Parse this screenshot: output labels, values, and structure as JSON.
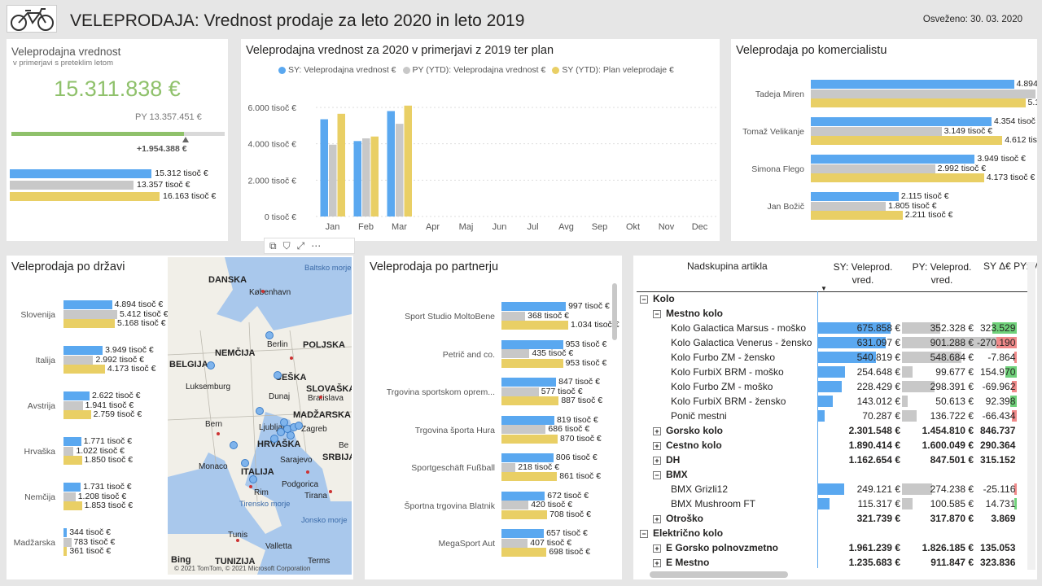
{
  "header": {
    "title": "VELEPRODAJA: Vrednost prodaje za leto 2020 in leto 2019",
    "refreshed": "Osveženo: 30. 03. 2020",
    "logo_icon": "bicycle-icon"
  },
  "kpi": {
    "title": "Veleprodajna vrednost",
    "subtitle": "v primerjavi s preteklim letom",
    "value": "15.311.838 €",
    "py_label": "PY 13.357.451 €",
    "delta": "+1.954.388 €",
    "progress_fraction": 0.81,
    "bars": [
      {
        "label": "15.312 tisoč €",
        "value": 15312,
        "color": "#5aa8f0"
      },
      {
        "label": "13.357 tisoč €",
        "value": 13357,
        "color": "#c8c8c8"
      },
      {
        "label": "16.163 tisoč €",
        "value": 16163,
        "color": "#e9cf65"
      }
    ]
  },
  "monthly": {
    "title": "Veleprodajna vrednost za 2020 v primerjavi z 2019 ter plan",
    "legend": [
      "SY: Veleprodajna vrednost €",
      "PY (YTD): Veleprodajna vrednost €",
      "SY (YTD): Plan veleprodaje €"
    ],
    "yticks": [
      "6.000 tisoč €",
      "4.000 tisoč €",
      "2.000 tisoč €",
      "0 tisoč €"
    ]
  },
  "chart_data": {
    "type": "bar",
    "categories": [
      "Jan",
      "Feb",
      "Mar",
      "Apr",
      "Maj",
      "Jun",
      "Jul",
      "Avg",
      "Sep",
      "Okt",
      "Nov",
      "Dec"
    ],
    "series": [
      {
        "name": "SY: Veleprodajna vrednost €",
        "values": [
          5350,
          4150,
          5800,
          null,
          null,
          null,
          null,
          null,
          null,
          null,
          null,
          null
        ],
        "color": "#5aa8f0"
      },
      {
        "name": "PY (YTD): Veleprodajna vrednost €",
        "values": [
          3950,
          4300,
          5100,
          null,
          null,
          null,
          null,
          null,
          null,
          null,
          null,
          null
        ],
        "color": "#c8c8c8"
      },
      {
        "name": "SY (YTD): Plan veleprodaje €",
        "values": [
          5650,
          4400,
          6100,
          null,
          null,
          null,
          null,
          null,
          null,
          null,
          null,
          null
        ],
        "color": "#e9cf65"
      }
    ],
    "ylim": [
      0,
      7000
    ],
    "grid": true,
    "legend_position": "top"
  },
  "komercialist": {
    "title": "Veleprodaja po komercialistu",
    "rows": [
      {
        "name": "Tadeja Miren",
        "vals": [
          4894,
          5412,
          5168
        ],
        "labels": [
          "4.894 tisoč €",
          "5.412 tisoč €",
          "5.168 tisoč €"
        ]
      },
      {
        "name": "Tomaž Velikanje",
        "vals": [
          4354,
          3149,
          4612
        ],
        "labels": [
          "4.354 tisoč €",
          "3.149 tisoč €",
          "4.612 tisoč €"
        ]
      },
      {
        "name": "Simona Flego",
        "vals": [
          3949,
          2992,
          4173
        ],
        "labels": [
          "3.949 tisoč €",
          "2.992 tisoč €",
          "4.173 tisoč €"
        ]
      },
      {
        "name": "Jan Božič",
        "vals": [
          2115,
          1805,
          2211
        ],
        "labels": [
          "2.115 tisoč €",
          "1.805 tisoč €",
          "2.211 tisoč €"
        ]
      }
    ]
  },
  "drzava": {
    "title": "Veleprodaja po državi",
    "rows": [
      {
        "name": "Slovenija",
        "vals": [
          4894,
          5412,
          5168
        ],
        "labels": [
          "4.894 tisoč €",
          "5.412 tisoč €",
          "5.168 tisoč €"
        ]
      },
      {
        "name": "Italija",
        "vals": [
          3949,
          2992,
          4173
        ],
        "labels": [
          "3.949 tisoč €",
          "2.992 tisoč €",
          "4.173 tisoč €"
        ]
      },
      {
        "name": "Avstrija",
        "vals": [
          2622,
          1941,
          2759
        ],
        "labels": [
          "2.622 tisoč €",
          "1.941 tisoč €",
          "2.759 tisoč €"
        ]
      },
      {
        "name": "Hrvaška",
        "vals": [
          1771,
          1022,
          1850
        ],
        "labels": [
          "1.771 tisoč €",
          "1.022 tisoč €",
          "1.850 tisoč €"
        ]
      },
      {
        "name": "Nemčija",
        "vals": [
          1731,
          1208,
          1853
        ],
        "labels": [
          "1.731 tisoč €",
          "1.208 tisoč €",
          "1.853 tisoč €"
        ]
      },
      {
        "name": "Madžarska",
        "vals": [
          344,
          783,
          361
        ],
        "labels": [
          "344 tisoč €",
          "783 tisoč €",
          "361 tisoč €"
        ]
      }
    ]
  },
  "map": {
    "labels": [
      "DANSKA",
      "København",
      "Baltsko morje",
      "Berlin",
      "POLJSKA",
      "NEMČIJA",
      "BELGIJA",
      "Luksemburg",
      "ČEŠKA",
      "SLOVAŠKA",
      "Dunaj",
      "Bratislava",
      "MADŽARSKA",
      "Bern",
      "Ljubljana",
      "Zagreb",
      "HRVAŠKA",
      "SRBIJA",
      "Be",
      "Monaco",
      "ITALIJA",
      "Sarajevo",
      "Podgorica",
      "Rim",
      "Tirana",
      "Tirensko morje",
      "Jonsko morje",
      "Tunis",
      "Valletta",
      "TUNIZIJA",
      "Bing",
      "Terms",
      "© 2021 TomTom, © 2021 Microsoft Corporation"
    ]
  },
  "partner": {
    "title": "Veleprodaja po partnerju",
    "rows": [
      {
        "name": "Sport Studio MoltoBene",
        "vals": [
          997,
          368,
          1034
        ],
        "labels": [
          "997 tisoč €",
          "368 tisoč €",
          "1.034 tisoč €"
        ]
      },
      {
        "name": "Petrič and co.",
        "vals": [
          953,
          435,
          953
        ],
        "labels": [
          "953 tisoč €",
          "435 tisoč €",
          "953 tisoč €"
        ]
      },
      {
        "name": "Trgovina sportskom oprem...",
        "vals": [
          847,
          577,
          887
        ],
        "labels": [
          "847 tisoč €",
          "577 tisoč €",
          "887 tisoč €"
        ]
      },
      {
        "name": "Trgovina športa Hura",
        "vals": [
          819,
          686,
          870
        ],
        "labels": [
          "819 tisoč €",
          "686 tisoč €",
          "870 tisoč €"
        ]
      },
      {
        "name": "Sportgeschäft Fußball",
        "vals": [
          806,
          218,
          861
        ],
        "labels": [
          "806 tisoč €",
          "218 tisoč €",
          "861 tisoč €"
        ]
      },
      {
        "name": "Športna trgovina Blatnik",
        "vals": [
          672,
          420,
          708
        ],
        "labels": [
          "672 tisoč €",
          "420 tisoč €",
          "708 tisoč €"
        ]
      },
      {
        "name": "MegaSport Aut",
        "vals": [
          657,
          407,
          698
        ],
        "labels": [
          "657 tisoč €",
          "407 tisoč €",
          "698 tisoč €"
        ]
      }
    ]
  },
  "matrix": {
    "headers": [
      "Nadskupina artikla",
      "SY: Veleprod. vred.",
      "PY: Veleprod. vred.",
      "SY Δ€ PY: V"
    ],
    "rows": [
      {
        "label": "Kolo",
        "level": 0,
        "exp": "⊟",
        "bold": true,
        "sy": "",
        "py": "",
        "d": ""
      },
      {
        "label": "Mestno kolo",
        "level": 1,
        "exp": "⊟",
        "bold": true,
        "sy": "",
        "py": "",
        "d": ""
      },
      {
        "label": "Kolo Galactica Marsus - moško",
        "level": 2,
        "sy": "675.858 €",
        "py": "352.328 €",
        "d": "323.529",
        "syv": 675858,
        "pyv": 352328,
        "dv": 323529
      },
      {
        "label": "Kolo Galactica Venerus - žensko",
        "level": 2,
        "sy": "631.097 €",
        "py": "901.288 €",
        "d": "-270.190",
        "syv": 631097,
        "pyv": 901288,
        "dv": -270190
      },
      {
        "label": "Kolo Furbo ZM - žensko",
        "level": 2,
        "sy": "540.819 €",
        "py": "548.684 €",
        "d": "-7.864",
        "syv": 540819,
        "pyv": 548684,
        "dv": -7864
      },
      {
        "label": "Kolo FurbiX BRM - moško",
        "level": 2,
        "sy": "254.648 €",
        "py": "99.677 €",
        "d": "154.970",
        "syv": 254648,
        "pyv": 99677,
        "dv": 154970
      },
      {
        "label": "Kolo Furbo ZM - moško",
        "level": 2,
        "sy": "228.429 €",
        "py": "298.391 €",
        "d": "-69.962",
        "syv": 228429,
        "pyv": 298391,
        "dv": -69962
      },
      {
        "label": "Kolo FurbiX BRM - žensko",
        "level": 2,
        "sy": "143.012 €",
        "py": "50.613 €",
        "d": "92.398",
        "syv": 143012,
        "pyv": 50613,
        "dv": 92398
      },
      {
        "label": "Ponič mestni",
        "level": 2,
        "sy": "70.287 €",
        "py": "136.722 €",
        "d": "-66.434",
        "syv": 70287,
        "pyv": 136722,
        "dv": -66434
      },
      {
        "label": "Gorsko kolo",
        "level": 1,
        "exp": "⊞",
        "bold": true,
        "sy": "2.301.548 €",
        "py": "1.454.810 €",
        "d": "846.737"
      },
      {
        "label": "Cestno kolo",
        "level": 1,
        "exp": "⊞",
        "bold": true,
        "sy": "1.890.414 €",
        "py": "1.600.049 €",
        "d": "290.364"
      },
      {
        "label": "DH",
        "level": 1,
        "exp": "⊞",
        "bold": true,
        "sy": "1.162.654 €",
        "py": "847.501 €",
        "d": "315.152"
      },
      {
        "label": "BMX",
        "level": 1,
        "exp": "⊟",
        "bold": true,
        "sy": "",
        "py": "",
        "d": ""
      },
      {
        "label": "BMX Grizli12",
        "level": 2,
        "sy": "249.121 €",
        "py": "274.238 €",
        "d": "-25.116",
        "syv": 249121,
        "pyv": 274238,
        "dv": -25116
      },
      {
        "label": "BMX Mushroom FT",
        "level": 2,
        "sy": "115.317 €",
        "py": "100.585 €",
        "d": "14.731",
        "syv": 115317,
        "pyv": 100585,
        "dv": 14731
      },
      {
        "label": "Otroško",
        "level": 1,
        "exp": "⊞",
        "bold": true,
        "sy": "321.739 €",
        "py": "317.870 €",
        "d": "3.869"
      },
      {
        "label": "Električno kolo",
        "level": 0,
        "exp": "⊟",
        "bold": true,
        "sy": "",
        "py": "",
        "d": ""
      },
      {
        "label": "E Gorsko polnovzmetno",
        "level": 1,
        "exp": "⊞",
        "bold": true,
        "sy": "1.961.239 €",
        "py": "1.826.185 €",
        "d": "135.053"
      },
      {
        "label": "E Mestno",
        "level": 1,
        "exp": "⊞",
        "bold": true,
        "sy": "1.235.683 €",
        "py": "911.847 €",
        "d": "323.836"
      }
    ]
  }
}
